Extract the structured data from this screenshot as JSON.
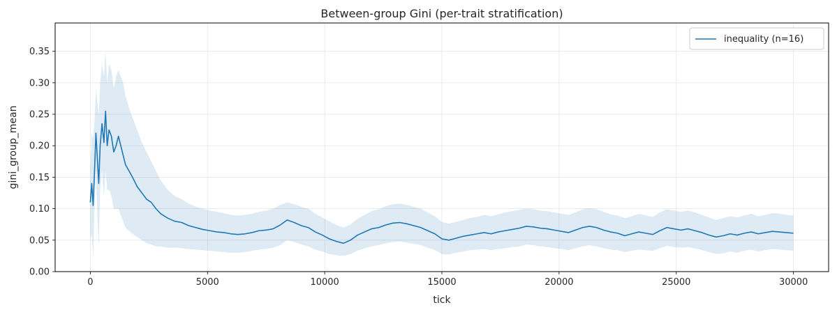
{
  "chart_data": {
    "type": "line",
    "title": "Between-group Gini (per-trait stratification)",
    "xlabel": "tick",
    "ylabel": "gini_group_mean",
    "xlim": [
      -1500,
      31500
    ],
    "ylim": [
      0.0,
      0.395
    ],
    "x_ticks": [
      0,
      5000,
      10000,
      15000,
      20000,
      25000,
      30000
    ],
    "x_tick_labels": [
      "0",
      "5000",
      "10000",
      "15000",
      "20000",
      "25000",
      "30000"
    ],
    "y_ticks": [
      0.0,
      0.05,
      0.1,
      0.15,
      0.2,
      0.25,
      0.3,
      0.35
    ],
    "y_tick_labels": [
      "0.00",
      "0.05",
      "0.10",
      "0.15",
      "0.20",
      "0.25",
      "0.30",
      "0.35"
    ],
    "grid": true,
    "legend_position": "top-right",
    "colors": {
      "line": "#1f77b4",
      "band": "#1f77b4"
    },
    "series": [
      {
        "name": "inequality (n=16)",
        "x": [
          0,
          60,
          120,
          180,
          240,
          300,
          360,
          420,
          500,
          580,
          650,
          720,
          800,
          900,
          1000,
          1100,
          1200,
          1300,
          1400,
          1500,
          1650,
          1800,
          2000,
          2200,
          2400,
          2600,
          2800,
          3000,
          3300,
          3600,
          3900,
          4200,
          4500,
          4800,
          5100,
          5400,
          5700,
          6000,
          6300,
          6600,
          6900,
          7200,
          7500,
          7800,
          8100,
          8400,
          8700,
          9000,
          9300,
          9600,
          9900,
          10200,
          10500,
          10800,
          11100,
          11400,
          11700,
          12000,
          12300,
          12600,
          12900,
          13200,
          13500,
          13800,
          14100,
          14400,
          14700,
          15000,
          15300,
          15600,
          15900,
          16200,
          16500,
          16800,
          17100,
          17400,
          17700,
          18000,
          18300,
          18600,
          18900,
          19200,
          19500,
          19800,
          20100,
          20400,
          20700,
          21000,
          21300,
          21600,
          21900,
          22200,
          22500,
          22800,
          23100,
          23400,
          23700,
          24000,
          24300,
          24600,
          24900,
          25200,
          25500,
          25800,
          26100,
          26400,
          26700,
          27000,
          27300,
          27600,
          27900,
          28200,
          28500,
          28800,
          29100,
          29400,
          29700,
          30000
        ],
        "mean": [
          0.11,
          0.14,
          0.105,
          0.16,
          0.22,
          0.18,
          0.14,
          0.2,
          0.235,
          0.205,
          0.255,
          0.2,
          0.225,
          0.215,
          0.19,
          0.2,
          0.215,
          0.2,
          0.185,
          0.17,
          0.16,
          0.15,
          0.135,
          0.125,
          0.115,
          0.11,
          0.1,
          0.092,
          0.085,
          0.08,
          0.078,
          0.073,
          0.07,
          0.067,
          0.065,
          0.063,
          0.062,
          0.06,
          0.059,
          0.06,
          0.062,
          0.065,
          0.066,
          0.068,
          0.074,
          0.082,
          0.078,
          0.073,
          0.07,
          0.063,
          0.058,
          0.052,
          0.048,
          0.045,
          0.05,
          0.058,
          0.063,
          0.068,
          0.07,
          0.074,
          0.077,
          0.078,
          0.076,
          0.073,
          0.07,
          0.065,
          0.06,
          0.052,
          0.05,
          0.053,
          0.056,
          0.058,
          0.06,
          0.062,
          0.06,
          0.063,
          0.065,
          0.067,
          0.069,
          0.072,
          0.071,
          0.069,
          0.068,
          0.066,
          0.064,
          0.062,
          0.066,
          0.07,
          0.072,
          0.07,
          0.066,
          0.063,
          0.061,
          0.057,
          0.06,
          0.063,
          0.061,
          0.059,
          0.065,
          0.07,
          0.068,
          0.066,
          0.068,
          0.065,
          0.062,
          0.058,
          0.055,
          0.057,
          0.06,
          0.058,
          0.061,
          0.063,
          0.06,
          0.062,
          0.064,
          0.063,
          0.062,
          0.061
        ],
        "lower": [
          0.05,
          0.06,
          0.02,
          0.1,
          0.16,
          0.09,
          0.04,
          0.13,
          0.16,
          0.12,
          0.16,
          0.13,
          0.13,
          0.12,
          0.1,
          0.1,
          0.1,
          0.09,
          0.08,
          0.07,
          0.065,
          0.06,
          0.055,
          0.05,
          0.045,
          0.043,
          0.04,
          0.04,
          0.038,
          0.038,
          0.037,
          0.036,
          0.035,
          0.034,
          0.033,
          0.032,
          0.031,
          0.03,
          0.03,
          0.031,
          0.033,
          0.035,
          0.036,
          0.038,
          0.042,
          0.05,
          0.047,
          0.043,
          0.04,
          0.035,
          0.032,
          0.028,
          0.026,
          0.025,
          0.028,
          0.033,
          0.037,
          0.04,
          0.042,
          0.045,
          0.047,
          0.048,
          0.046,
          0.044,
          0.042,
          0.038,
          0.034,
          0.028,
          0.027,
          0.03,
          0.032,
          0.034,
          0.035,
          0.036,
          0.034,
          0.036,
          0.037,
          0.039,
          0.04,
          0.043,
          0.042,
          0.04,
          0.039,
          0.037,
          0.036,
          0.034,
          0.037,
          0.04,
          0.042,
          0.04,
          0.037,
          0.035,
          0.034,
          0.031,
          0.033,
          0.035,
          0.034,
          0.033,
          0.037,
          0.041,
          0.039,
          0.038,
          0.039,
          0.037,
          0.034,
          0.031,
          0.028,
          0.029,
          0.032,
          0.03,
          0.033,
          0.035,
          0.032,
          0.034,
          0.036,
          0.035,
          0.034,
          0.033
        ],
        "upper": [
          0.16,
          0.22,
          0.21,
          0.24,
          0.29,
          0.27,
          0.25,
          0.3,
          0.33,
          0.31,
          0.35,
          0.3,
          0.33,
          0.32,
          0.29,
          0.31,
          0.32,
          0.31,
          0.3,
          0.28,
          0.26,
          0.245,
          0.225,
          0.205,
          0.19,
          0.175,
          0.16,
          0.145,
          0.13,
          0.12,
          0.115,
          0.108,
          0.103,
          0.1,
          0.097,
          0.095,
          0.093,
          0.09,
          0.089,
          0.09,
          0.092,
          0.095,
          0.097,
          0.1,
          0.106,
          0.11,
          0.107,
          0.103,
          0.1,
          0.092,
          0.086,
          0.08,
          0.074,
          0.07,
          0.075,
          0.084,
          0.09,
          0.096,
          0.099,
          0.104,
          0.107,
          0.108,
          0.106,
          0.103,
          0.1,
          0.094,
          0.088,
          0.079,
          0.076,
          0.079,
          0.082,
          0.085,
          0.087,
          0.09,
          0.088,
          0.091,
          0.094,
          0.096,
          0.098,
          0.1,
          0.099,
          0.097,
          0.096,
          0.094,
          0.092,
          0.09,
          0.094,
          0.099,
          0.101,
          0.099,
          0.095,
          0.091,
          0.089,
          0.085,
          0.088,
          0.092,
          0.089,
          0.087,
          0.094,
          0.099,
          0.097,
          0.095,
          0.097,
          0.094,
          0.09,
          0.086,
          0.082,
          0.085,
          0.088,
          0.086,
          0.089,
          0.092,
          0.088,
          0.09,
          0.093,
          0.092,
          0.09,
          0.089
        ]
      }
    ]
  }
}
